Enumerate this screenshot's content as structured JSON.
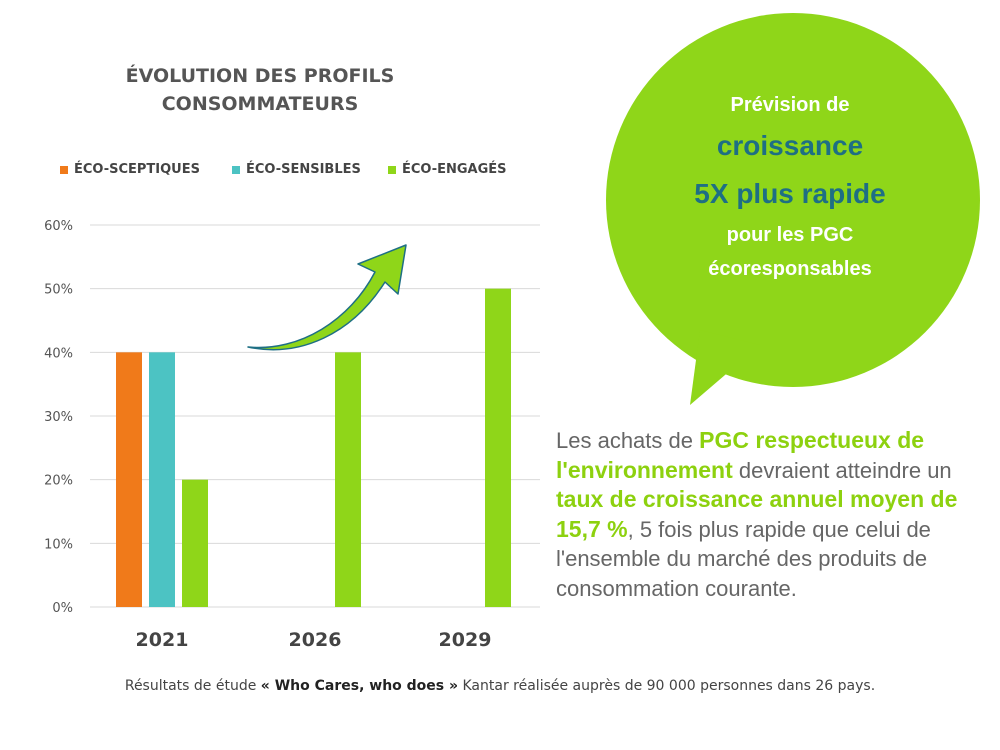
{
  "chart_data": {
    "type": "bar",
    "title": "ÉVOLUTION DES PROFILS CONSOMMATEURS",
    "title_lines": [
      "ÉVOLUTION DES PROFILS",
      "CONSOMMATEURS"
    ],
    "categories": [
      "2021",
      "2026",
      "2029"
    ],
    "series": [
      {
        "name": "ÉCO-SCEPTIQUES",
        "color": "#f07a1a",
        "values": [
          40,
          null,
          null
        ]
      },
      {
        "name": "ÉCO-SENSIBLES",
        "color": "#4cc3c3",
        "values": [
          40,
          null,
          null
        ]
      },
      {
        "name": "ÉCO-ENGAGÉS",
        "color": "#8fd619",
        "values": [
          20,
          40,
          50
        ]
      }
    ],
    "yticks": [
      "0%",
      "10%",
      "20%",
      "30%",
      "40%",
      "50%",
      "60%"
    ],
    "ylim": [
      0,
      60
    ],
    "y_unit": "%",
    "grid": true,
    "legend_position": "top",
    "trend_arrow": "upward green arrow"
  },
  "bubble": {
    "line1": "Prévision de",
    "line2": "croissance",
    "line3": "5X plus rapide",
    "line4": "pour les PGC",
    "line5": "écoresponsables",
    "color": "#8fd619"
  },
  "paragraph": {
    "p1": "Les achats de ",
    "h1": "PGC respectueux de l'environnement",
    "p2": " devraient atteindre un ",
    "h2": "taux de croissance annuel moyen de 15,7 %",
    "p3": ", 5 fois plus rapide que celui de l'ensemble du marché des produits de consommation courante."
  },
  "footer": {
    "pre": "Résultats de étude ",
    "bold": "« Who Cares, who does »",
    "post": " Kantar réalisée auprès de 90 000 personnes dans 26 pays."
  }
}
